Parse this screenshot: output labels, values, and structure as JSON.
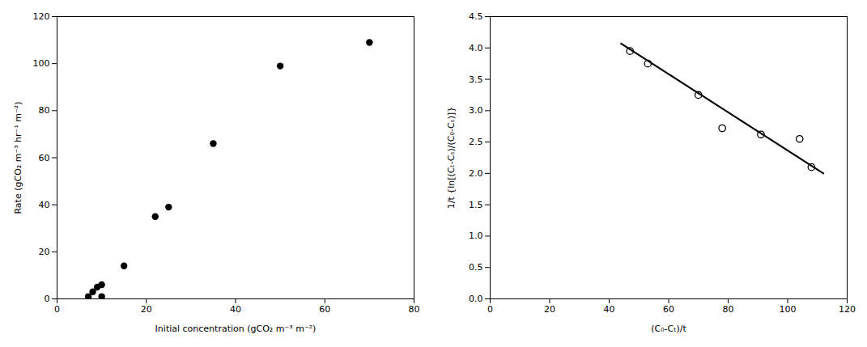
{
  "chart_data": [
    {
      "type": "scatter",
      "x": [
        7,
        8,
        9,
        10,
        10,
        15,
        22,
        25,
        35,
        50,
        70
      ],
      "values": [
        1,
        3,
        5,
        6,
        1,
        14,
        35,
        39,
        66,
        99,
        109
      ],
      "color": "black",
      "marker": "circle",
      "x_label": "Initial concentration (gCO₂ m⁻³ m⁻²)",
      "y_label": "Rate (gCO₂ m⁻³ hr⁻¹ m⁻²)",
      "xlim": [
        0,
        80
      ],
      "ylim": [
        0,
        120
      ],
      "xticks": [
        0,
        20,
        40,
        60,
        80
      ],
      "yticks": [
        0,
        20,
        40,
        60,
        80,
        100,
        120
      ],
      "grid": false
    },
    {
      "type": "scatter",
      "series": [
        {
          "type": "scatter",
          "x": [
            47,
            53,
            70,
            78,
            91,
            104,
            108
          ],
          "values": [
            3.95,
            3.75,
            3.25,
            2.72,
            2.62,
            2.55,
            2.1
          ],
          "color": "black",
          "marker": "hollow"
        },
        {
          "type": "line",
          "x": [
            44,
            112
          ],
          "values": [
            4.07,
            2.0
          ],
          "color": "black",
          "line_style": "solid"
        }
      ],
      "x_label": "(C₀-Cₜ)/t",
      "y_label": "1/t {ln[(Cₜ-Cₛ)/(C₀-Cₛ)]}",
      "xlim": [
        0,
        120
      ],
      "ylim": [
        0.0,
        4.5
      ],
      "xticks": [
        0,
        20,
        40,
        60,
        80,
        100,
        120
      ],
      "yticks": [
        {
          "value": 0.0,
          "label": "0.0"
        },
        0.5,
        {
          "value": 1.0,
          "label": "1.0"
        },
        1.5,
        {
          "value": 2.0,
          "label": "2.0"
        },
        2.5,
        {
          "value": 3.0,
          "label": "3.0"
        },
        3.5,
        {
          "value": 4.0,
          "label": "4.0"
        },
        4.5
      ],
      "grid": false
    }
  ]
}
